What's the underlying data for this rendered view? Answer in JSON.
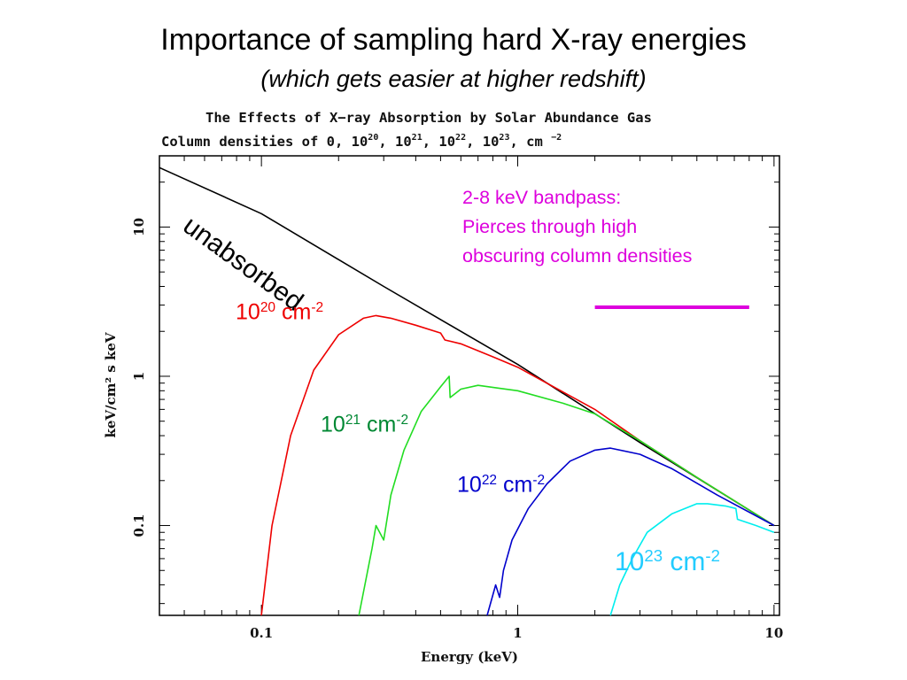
{
  "title": "Importance of sampling hard X-ray energies",
  "subtitle": "(which gets easier at higher redshift)",
  "chart_header": {
    "title": "The Effects of X−ray Absorption by Solar Abundance Gas",
    "column_line_prefix": "Column densities of 0, 10",
    "e1": "20",
    "sep1": ", 10",
    "e2": "21",
    "sep2": ", 10",
    "e3": "22",
    "sep3": ", 10",
    "e4": "23",
    "unit": ", cm ",
    "unit_exp": "−2"
  },
  "annotations": {
    "unabsorbed": "unabsorbed",
    "bandpass": [
      "2-8 keV bandpass:",
      "Pierces through high",
      "obscuring column densities"
    ],
    "nh20": {
      "base": "10",
      "exp": "20",
      "unit": " cm",
      "unit_exp": "-2"
    },
    "nh21": {
      "base": "10",
      "exp": "21",
      "unit": " cm",
      "unit_exp": "-2"
    },
    "nh22": {
      "base": "10",
      "exp": "22",
      "unit": " cm",
      "unit_exp": "-2"
    },
    "nh23": {
      "base": "10",
      "exp": "23",
      "unit": " cm",
      "unit_exp": "-2"
    }
  },
  "chart_data": {
    "type": "line",
    "xlabel": "Energy (keV)",
    "ylabel": "keV/cm² s keV",
    "xscale": "log",
    "yscale": "log",
    "xlim": [
      0.04,
      10.5
    ],
    "ylim": [
      0.025,
      30
    ],
    "xticks": [
      {
        "value": 0.1,
        "label": "0.1"
      },
      {
        "value": 1,
        "label": "1"
      },
      {
        "value": 10,
        "label": "10"
      }
    ],
    "yticks": [
      {
        "value": 0.1,
        "label": "0.1"
      },
      {
        "value": 1,
        "label": "1"
      },
      {
        "value": 10,
        "label": "10"
      }
    ],
    "series": [
      {
        "color": "#000000",
        "points": [
          [
            0.04,
            25
          ],
          [
            0.1,
            12.3
          ],
          [
            0.3,
            4.0
          ],
          [
            1,
            1.2
          ],
          [
            3,
            0.36
          ],
          [
            10,
            0.1
          ]
        ]
      },
      {
        "color": "#ee0000",
        "points": [
          [
            0.1,
            0.025
          ],
          [
            0.11,
            0.1
          ],
          [
            0.13,
            0.4
          ],
          [
            0.16,
            1.1
          ],
          [
            0.2,
            1.9
          ],
          [
            0.25,
            2.45
          ],
          [
            0.28,
            2.55
          ],
          [
            0.32,
            2.45
          ],
          [
            0.4,
            2.2
          ],
          [
            0.5,
            1.95
          ],
          [
            0.52,
            1.75
          ],
          [
            0.6,
            1.65
          ],
          [
            0.8,
            1.35
          ],
          [
            1,
            1.15
          ],
          [
            2,
            0.6
          ],
          [
            3,
            0.37
          ],
          [
            5,
            0.21
          ],
          [
            10,
            0.1
          ]
        ]
      },
      {
        "color": "#22dd22",
        "points": [
          [
            0.24,
            0.025
          ],
          [
            0.27,
            0.07
          ],
          [
            0.28,
            0.1
          ],
          [
            0.3,
            0.08
          ],
          [
            0.32,
            0.16
          ],
          [
            0.36,
            0.32
          ],
          [
            0.42,
            0.58
          ],
          [
            0.5,
            0.85
          ],
          [
            0.54,
            1.0
          ],
          [
            0.545,
            0.72
          ],
          [
            0.6,
            0.82
          ],
          [
            0.7,
            0.87
          ],
          [
            0.85,
            0.83
          ],
          [
            1,
            0.8
          ],
          [
            1.5,
            0.66
          ],
          [
            2,
            0.56
          ],
          [
            3,
            0.37
          ],
          [
            5,
            0.21
          ],
          [
            10,
            0.1
          ]
        ]
      },
      {
        "color": "#0000cc",
        "points": [
          [
            0.76,
            0.025
          ],
          [
            0.82,
            0.04
          ],
          [
            0.85,
            0.033
          ],
          [
            0.88,
            0.05
          ],
          [
            0.95,
            0.08
          ],
          [
            1.1,
            0.13
          ],
          [
            1.3,
            0.19
          ],
          [
            1.6,
            0.27
          ],
          [
            2.0,
            0.32
          ],
          [
            2.3,
            0.33
          ],
          [
            3,
            0.3
          ],
          [
            4,
            0.24
          ],
          [
            6,
            0.16
          ],
          [
            10,
            0.1
          ]
        ]
      },
      {
        "color": "#00eeee",
        "points": [
          [
            2.3,
            0.025
          ],
          [
            2.5,
            0.04
          ],
          [
            2.8,
            0.06
          ],
          [
            3.2,
            0.09
          ],
          [
            4,
            0.12
          ],
          [
            5,
            0.14
          ],
          [
            5.5,
            0.14
          ],
          [
            6.5,
            0.135
          ],
          [
            7.1,
            0.13
          ],
          [
            7.2,
            0.11
          ],
          [
            8.5,
            0.1
          ],
          [
            10,
            0.09
          ]
        ]
      }
    ],
    "legend_line": {
      "x": [
        2,
        8
      ],
      "y": 2.9,
      "color": "#dd00dd"
    }
  }
}
